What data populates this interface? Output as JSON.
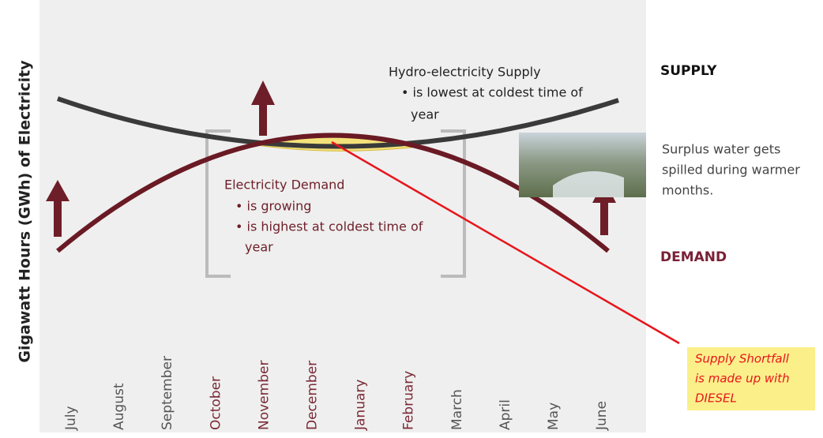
{
  "y_axis_label": "Gigawatt Hours (GWh) of Electricity",
  "months": [
    "July",
    "August",
    "September",
    "October",
    "November",
    "December",
    "January",
    "February",
    "March",
    "April",
    "May",
    "June"
  ],
  "supply_note": {
    "title": "Hydro-electricity Supply",
    "lines": [
      "• is lowest at coldest time of",
      "year"
    ]
  },
  "demand_note": {
    "title": "Electricity Demand",
    "lines": [
      "• is growing",
      "• is highest at coldest time of",
      "year"
    ]
  },
  "side": {
    "supply_label": "SUPPLY",
    "surplus_lines": [
      "Surplus water gets",
      "spilled during warmer",
      "months."
    ],
    "demand_label": "DEMAND"
  },
  "callout": {
    "lines": [
      "Supply Shortfall",
      "is made up with",
      "DIESEL"
    ]
  }
}
